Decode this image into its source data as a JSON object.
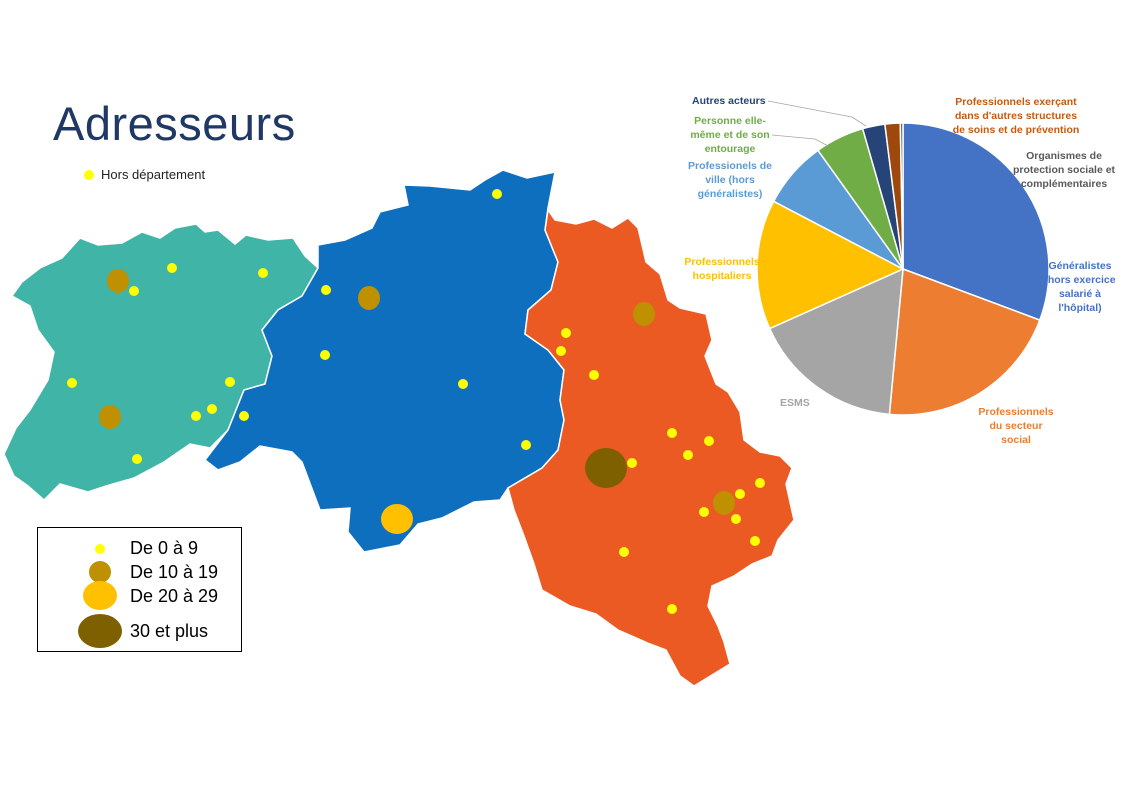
{
  "title": "Adresseurs",
  "hors_departement_legend": "Hors département",
  "size_legend": [
    {
      "label": "De 0 à 9",
      "color": "#ffff00"
    },
    {
      "label": "De 10 à 19",
      "color": "#bf9000"
    },
    {
      "label": "De 20 à 29",
      "color": "#ffc000"
    },
    {
      "label": "30 et plus",
      "color": "#7f6000"
    }
  ],
  "region_colors": {
    "west": "#40b4a6",
    "center": "#0f6fbf",
    "east": "#ec5a24"
  },
  "chart_data": {
    "type": "pie",
    "slices": [
      {
        "label": "Généralistes (hors exercice salarié à l'hôpital)",
        "value": 31,
        "color": "#4472c4"
      },
      {
        "label": "Professionnels du secteur social",
        "value": 21,
        "color": "#ed7d31"
      },
      {
        "label": "ESMS",
        "value": 17,
        "color": "#a5a5a5"
      },
      {
        "label": "Professionnels hospitaliers",
        "value": 14.5,
        "color": "#ffc000"
      },
      {
        "label": "Professionnels de ville (hors généralistes)",
        "value": 7.5,
        "color": "#5b9bd5"
      },
      {
        "label": "Personne elle-même et de son entourage",
        "value": 5.5,
        "color": "#70ad47"
      },
      {
        "label": "Autres acteurs",
        "value": 2.5,
        "color": "#264478"
      },
      {
        "label": "Professionnels exerçant dans d'autres structures de soins et de prévention",
        "value": 1.7,
        "color": "#9e480e"
      },
      {
        "label": "Organismes de protection sociale et complémentaires",
        "value": 0.3,
        "color": "#636363"
      }
    ]
  },
  "pie_labels": {
    "autres": "Autres acteurs",
    "prof_exercant": [
      "Professionnels exerçant",
      "dans d'autres structures",
      "de soins et de prévention"
    ],
    "organismes": [
      "Organismes de",
      "protection sociale et",
      "complémentaires"
    ],
    "personne": [
      "Personne elle-",
      "même et de son",
      "entourage"
    ],
    "ville": [
      "Professionels de",
      "ville (hors",
      "généralistes)"
    ],
    "hospitaliers": [
      "Professionnels",
      "hospitaliers"
    ],
    "generalistes": [
      "Généralistes",
      "(hors exercice",
      "salarié à",
      "l'hôpital)"
    ],
    "esms": "ESMS",
    "social": [
      "Professionnels",
      "du secteur",
      "social"
    ]
  }
}
